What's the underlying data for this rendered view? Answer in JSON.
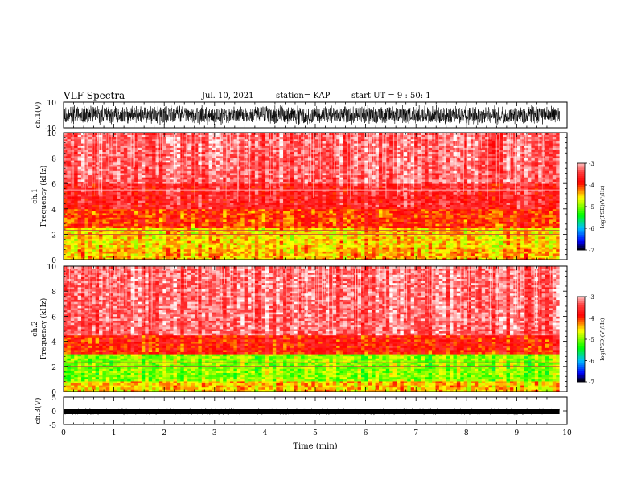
{
  "header": {
    "title": "VLF Spectra",
    "date": "Jul. 10, 2021",
    "station": "station= KAP",
    "start": "start UT = 9 : 50: 1"
  },
  "colors": {
    "spectro_ramp": [
      "#ffffff",
      "#ff4040",
      "#ff0000",
      "#ffff00",
      "#00ff00",
      "#00c0ff",
      "#0000ff",
      "#000000"
    ]
  },
  "chart_data": [
    {
      "type": "line",
      "name": "ch1-waveform",
      "ylabel": "ch.1(V)",
      "ylim": [
        -10,
        10
      ],
      "yticks": [
        "10",
        "-10"
      ],
      "xlim": [
        0,
        10
      ],
      "duration_min": 9.85,
      "amplitude_range": [
        -8,
        8
      ],
      "grid": false
    },
    {
      "type": "heatmap",
      "name": "ch1-spectrogram",
      "ylabel_channel": "ch.1",
      "ylabel": "Frequency (kHz)",
      "ylim": [
        0,
        10
      ],
      "yticks": [
        "0",
        "2",
        "4",
        "6",
        "8",
        "10"
      ],
      "xlim": [
        0,
        10
      ],
      "duration_min": 9.85,
      "color_axis_label": "log(PSD)(V²/Hz)",
      "color_ticks": [
        "-3",
        "-4",
        "-5",
        "-6",
        "-7"
      ],
      "color_range": [
        -7,
        -3
      ],
      "bands": [
        {
          "from_khz": 0,
          "to_khz": 1.0,
          "level": -4.4
        },
        {
          "from_khz": 1.0,
          "to_khz": 2.5,
          "level": -4.5
        },
        {
          "from_khz": 2.5,
          "to_khz": 4.0,
          "level": -4.0
        },
        {
          "from_khz": 4.0,
          "to_khz": 6.0,
          "level": -3.6
        },
        {
          "from_khz": 6.0,
          "to_khz": 10.0,
          "level": -3.3
        }
      ],
      "lines_khz": [
        2.0,
        2.3,
        5.5
      ]
    },
    {
      "type": "heatmap",
      "name": "ch2-spectrogram",
      "ylabel_channel": "ch.2",
      "ylabel": "Frequency (kHz)",
      "ylim": [
        0,
        10
      ],
      "yticks": [
        "0",
        "2",
        "4",
        "6",
        "8",
        "10"
      ],
      "xlim": [
        0,
        10
      ],
      "duration_min": 9.85,
      "color_axis_label": "log(PSD)(V²/Hz)",
      "color_ticks": [
        "-3",
        "-4",
        "-5",
        "-6",
        "-7"
      ],
      "color_range": [
        -7,
        -3
      ],
      "bands": [
        {
          "from_khz": 0,
          "to_khz": 0.8,
          "level": -4.5
        },
        {
          "from_khz": 0.8,
          "to_khz": 3.0,
          "level": -5.0
        },
        {
          "from_khz": 3.0,
          "to_khz": 4.5,
          "level": -3.9
        },
        {
          "from_khz": 4.5,
          "to_khz": 10.0,
          "level": -3.3
        }
      ],
      "lines_khz": [
        2.0,
        2.3
      ]
    },
    {
      "type": "line",
      "name": "ch3-waveform",
      "ylabel": "ch.3(V)",
      "ylim": [
        -5,
        5
      ],
      "yticks": [
        "5",
        "0",
        "-5"
      ],
      "xlim": [
        0,
        10
      ],
      "duration_min": 9.85,
      "amplitude_range": [
        -0.5,
        0.5
      ],
      "grid": false,
      "xlabel": "Time (min)",
      "xticks": [
        "0",
        "1",
        "2",
        "3",
        "4",
        "5",
        "6",
        "7",
        "8",
        "9",
        "10"
      ]
    }
  ]
}
